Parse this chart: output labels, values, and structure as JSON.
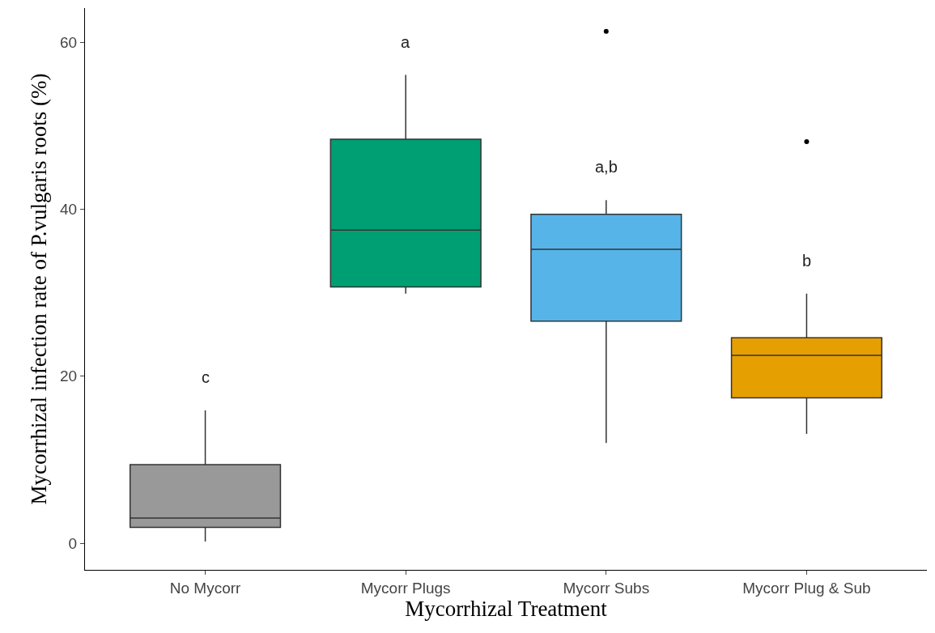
{
  "chart_data": {
    "type": "box",
    "xlabel": "Mycorrhizal Treatment",
    "ylabel": "Mycorrhizal infection rate of P.vulgaris roots (%)",
    "categories": [
      "No Mycorr",
      "Mycorr Plugs",
      "Mycorr Subs",
      "Mycorr Plug & Sub"
    ],
    "colors": [
      "#999999",
      "#009e73",
      "#56b4e9",
      "#e69f00"
    ],
    "boxes": [
      {
        "low": 0.2,
        "q1": 1.9,
        "median": 3.0,
        "q3": 9.4,
        "high": 15.9
      },
      {
        "low": 29.9,
        "q1": 30.7,
        "median": 37.5,
        "q3": 48.4,
        "high": 56.1
      },
      {
        "low": 12.0,
        "q1": 26.6,
        "median": 35.2,
        "q3": 39.4,
        "high": 41.1,
        "outliers": [
          61.3
        ]
      },
      {
        "low": 13.1,
        "q1": 17.4,
        "median": 22.5,
        "q3": 24.6,
        "high": 29.9,
        "outliers": [
          48.1
        ]
      }
    ],
    "ylim": [
      -3.2,
      64.1
    ],
    "yticks": [
      0,
      20,
      40,
      60
    ],
    "annotations": [
      "c",
      "a",
      "a,b",
      "b"
    ]
  }
}
